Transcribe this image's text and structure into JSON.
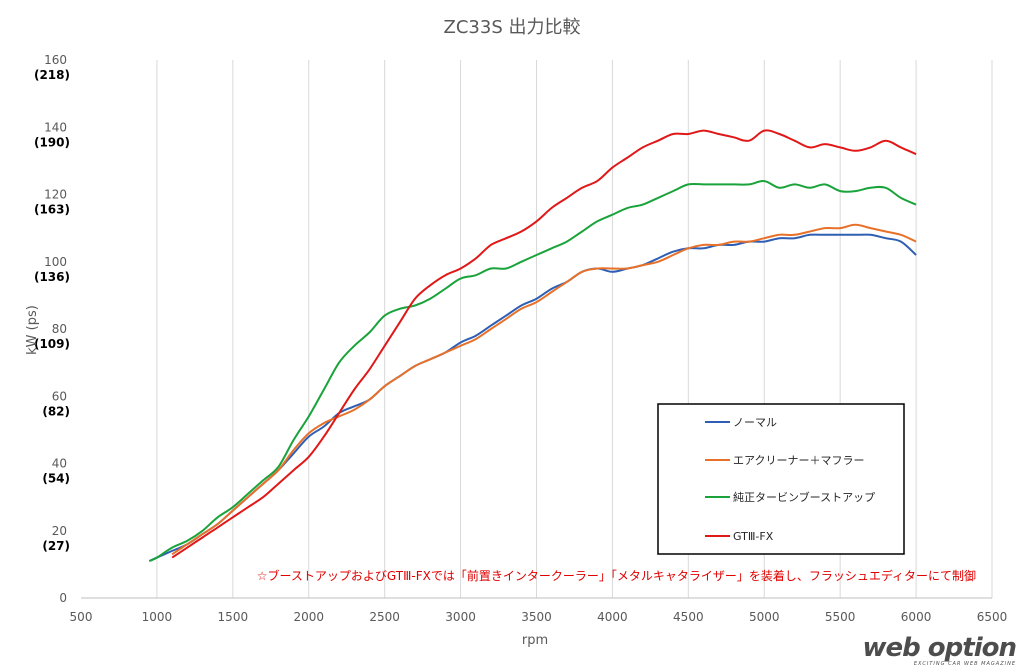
{
  "chart_data": {
    "type": "line",
    "title": "ZC33S 出力比較",
    "xlabel": "rpm",
    "ylabel": "kW (ps)",
    "xlim": [
      500,
      6500
    ],
    "ylim": [
      0,
      160
    ],
    "xticks": [
      500,
      1000,
      1500,
      2000,
      2500,
      3000,
      3500,
      4000,
      4500,
      5000,
      5500,
      6000,
      6500
    ],
    "yticks": [
      0,
      20,
      40,
      60,
      80,
      100,
      120,
      140,
      160
    ],
    "yticks_ps": [
      "(27)",
      "(54)",
      "(82)",
      "(109)",
      "(136)",
      "(163)",
      "(190)",
      "(218)"
    ],
    "grid": "vertical",
    "legend_position": "lower-right",
    "annotation": "☆ブーストアップおよびGTⅢ-FXでは「前置きインタークーラー」「メタルキャタライザー」を装着し、フラッシュエディターにて制御",
    "series": [
      {
        "name": "ノーマル",
        "color": "#2e5fb4",
        "x": [
          950,
          1000,
          1100,
          1200,
          1300,
          1400,
          1500,
          1600,
          1700,
          1800,
          1900,
          2000,
          2100,
          2200,
          2300,
          2400,
          2500,
          2600,
          2700,
          2800,
          2900,
          3000,
          3100,
          3200,
          3300,
          3400,
          3500,
          3600,
          3700,
          3800,
          3900,
          4000,
          4100,
          4200,
          4300,
          4400,
          4500,
          4600,
          4700,
          4800,
          4900,
          5000,
          5100,
          5200,
          5300,
          5400,
          5500,
          5600,
          5700,
          5800,
          5900,
          6000
        ],
        "values": [
          11,
          12,
          14,
          16,
          19,
          22,
          26,
          30,
          34,
          38,
          43,
          48,
          51,
          55,
          57,
          59,
          63,
          66,
          69,
          71,
          73,
          76,
          78,
          81,
          84,
          87,
          89,
          92,
          94,
          97,
          98,
          97,
          98,
          99,
          101,
          103,
          104,
          104,
          105,
          105,
          106,
          106,
          107,
          107,
          108,
          108,
          108,
          108,
          108,
          107,
          106,
          102
        ]
      },
      {
        "name": "エアクリーナー＋マフラー",
        "color": "#e8712a",
        "x": [
          1100,
          1200,
          1300,
          1400,
          1500,
          1600,
          1700,
          1800,
          1900,
          2000,
          2100,
          2200,
          2300,
          2400,
          2500,
          2600,
          2700,
          2800,
          2900,
          3000,
          3100,
          3200,
          3300,
          3400,
          3500,
          3600,
          3700,
          3800,
          3900,
          4000,
          4100,
          4200,
          4300,
          4400,
          4500,
          4600,
          4700,
          4800,
          4900,
          5000,
          5100,
          5200,
          5300,
          5400,
          5500,
          5600,
          5700,
          5800,
          5900,
          6000
        ],
        "values": [
          13,
          16,
          19,
          22,
          26,
          30,
          34,
          38,
          44,
          49,
          52,
          54,
          56,
          59,
          63,
          66,
          69,
          71,
          73,
          75,
          77,
          80,
          83,
          86,
          88,
          91,
          94,
          97,
          98,
          98,
          98,
          99,
          100,
          102,
          104,
          105,
          105,
          106,
          106,
          107,
          108,
          108,
          109,
          110,
          110,
          111,
          110,
          109,
          108,
          106
        ]
      },
      {
        "name": "純正タービンブーストアップ",
        "color": "#1aa33a",
        "x": [
          950,
          1000,
          1100,
          1200,
          1300,
          1400,
          1500,
          1600,
          1700,
          1800,
          1900,
          2000,
          2100,
          2200,
          2300,
          2400,
          2500,
          2600,
          2700,
          2800,
          2900,
          3000,
          3100,
          3200,
          3300,
          3400,
          3500,
          3600,
          3700,
          3800,
          3900,
          4000,
          4100,
          4200,
          4300,
          4400,
          4500,
          4600,
          4700,
          4800,
          4900,
          5000,
          5100,
          5200,
          5300,
          5400,
          5500,
          5600,
          5700,
          5800,
          5900,
          6000
        ],
        "values": [
          11,
          12,
          15,
          17,
          20,
          24,
          27,
          31,
          35,
          39,
          47,
          54,
          62,
          70,
          75,
          79,
          84,
          86,
          87,
          89,
          92,
          95,
          96,
          98,
          98,
          100,
          102,
          104,
          106,
          109,
          112,
          114,
          116,
          117,
          119,
          121,
          123,
          123,
          123,
          123,
          123,
          124,
          122,
          123,
          122,
          123,
          121,
          121,
          122,
          122,
          119,
          117
        ]
      },
      {
        "name": "GTⅢ-FX",
        "color": "#e01818",
        "x": [
          1100,
          1200,
          1300,
          1400,
          1500,
          1600,
          1700,
          1800,
          1900,
          2000,
          2100,
          2200,
          2300,
          2400,
          2500,
          2600,
          2700,
          2800,
          2900,
          3000,
          3100,
          3200,
          3300,
          3400,
          3500,
          3600,
          3700,
          3800,
          3900,
          4000,
          4100,
          4200,
          4300,
          4400,
          4500,
          4600,
          4700,
          4800,
          4900,
          5000,
          5100,
          5200,
          5300,
          5400,
          5500,
          5600,
          5700,
          5800,
          5900,
          6000
        ],
        "values": [
          12,
          15,
          18,
          21,
          24,
          27,
          30,
          34,
          38,
          42,
          48,
          55,
          62,
          68,
          75,
          82,
          89,
          93,
          96,
          98,
          101,
          105,
          107,
          109,
          112,
          116,
          119,
          122,
          124,
          128,
          131,
          134,
          136,
          138,
          138,
          139,
          138,
          137,
          136,
          139,
          138,
          136,
          134,
          135,
          134,
          133,
          134,
          136,
          134,
          132
        ]
      }
    ]
  },
  "watermark": {
    "main": "web option",
    "sub": "EXCITING CAR WEB MAGAZINE"
  }
}
